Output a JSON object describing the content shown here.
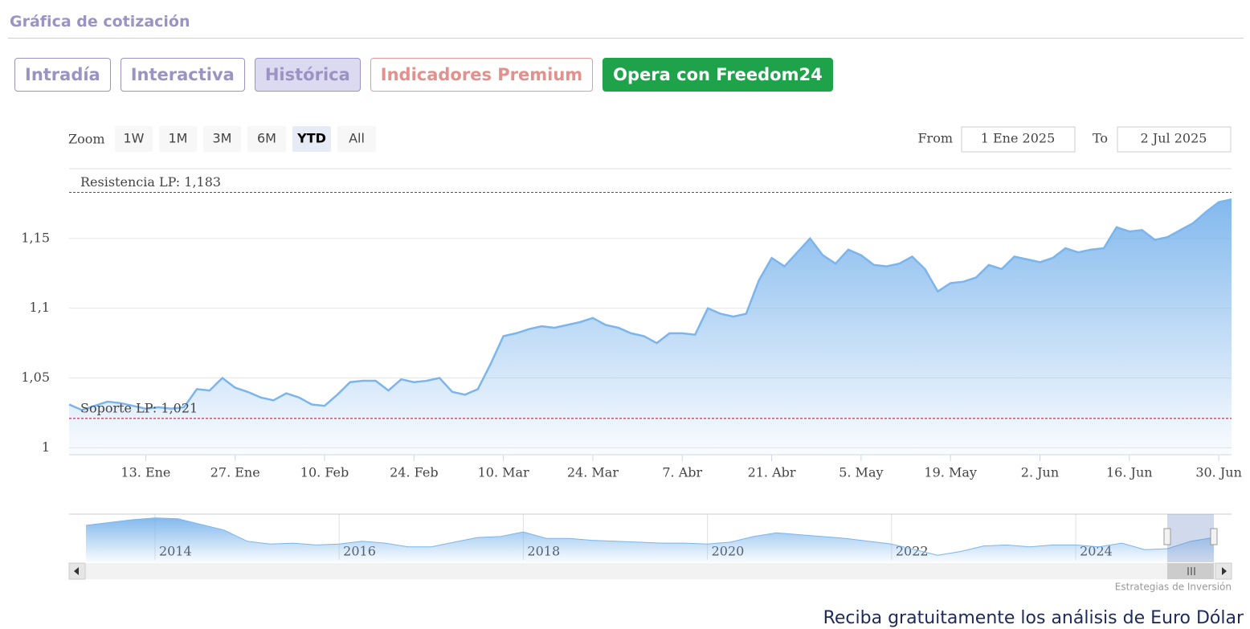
{
  "header": {
    "title": "Gráfica de cotización"
  },
  "tabs": [
    "Intradía",
    "Interactiva",
    "Histórica",
    "Indicadores Premium",
    "Opera con Freedom24"
  ],
  "zoom": {
    "label": "Zoom",
    "buttons": [
      "1W",
      "1M",
      "3M",
      "6M",
      "YTD",
      "All"
    ],
    "active": "YTD"
  },
  "range": {
    "from_label": "From",
    "from": "1 Ene 2025",
    "to_label": "To",
    "to": "2 Jul 2025"
  },
  "credits": "Estrategias de Inversión",
  "footer": "Reciba gratuitamente los análisis de Euro Dólar",
  "chart_data": [
    {
      "type": "area",
      "color": "#7cb5ec",
      "grid": true,
      "categories": [
        null,
        null,
        null,
        null,
        null,
        null,
        "13. Ene",
        null,
        null,
        null,
        null,
        null,
        null,
        "27. Ene",
        null,
        null,
        null,
        null,
        null,
        null,
        "10. Feb",
        null,
        null,
        null,
        null,
        null,
        null,
        "24. Feb",
        null,
        null,
        null,
        null,
        null,
        null,
        "10. Mar",
        null,
        null,
        null,
        null,
        null,
        null,
        "24. Mar",
        null,
        null,
        null,
        null,
        null,
        null,
        "7. Abr",
        null,
        null,
        null,
        null,
        null,
        null,
        "21. Abr",
        null,
        null,
        null,
        null,
        null,
        null,
        "5. May",
        null,
        null,
        null,
        null,
        null,
        null,
        "19. May",
        null,
        null,
        null,
        null,
        null,
        null,
        "2. Jun",
        null,
        null,
        null,
        null,
        null,
        null,
        "16. Jun",
        null,
        null,
        null,
        null,
        null,
        null,
        "30. Jun",
        null
      ],
      "values": [
        1.031,
        1.027,
        1.03,
        1.033,
        1.032,
        1.03,
        1.028,
        1.029,
        1.028,
        1.029,
        1.042,
        1.041,
        1.05,
        1.043,
        1.04,
        1.036,
        1.034,
        1.039,
        1.036,
        1.031,
        1.03,
        1.038,
        1.047,
        1.048,
        1.048,
        1.041,
        1.049,
        1.047,
        1.048,
        1.05,
        1.04,
        1.038,
        1.042,
        1.06,
        1.08,
        1.082,
        1.085,
        1.087,
        1.086,
        1.088,
        1.09,
        1.093,
        1.088,
        1.086,
        1.082,
        1.08,
        1.075,
        1.082,
        1.082,
        1.081,
        1.1,
        1.096,
        1.094,
        1.096,
        1.12,
        1.136,
        1.13,
        1.14,
        1.15,
        1.138,
        1.132,
        1.142,
        1.138,
        1.131,
        1.13,
        1.132,
        1.137,
        1.128,
        1.112,
        1.118,
        1.119,
        1.122,
        1.131,
        1.128,
        1.137,
        1.135,
        1.133,
        1.136,
        1.143,
        1.14,
        1.142,
        1.143,
        1.158,
        1.155,
        1.156,
        1.149,
        1.151,
        1.156,
        1.161,
        1.169,
        1.176,
        1.178
      ],
      "ylim": [
        0.995,
        1.2
      ],
      "yticks": [
        1,
        {
          "value": 1.05,
          "label": "1,05"
        },
        {
          "value": 1.1,
          "label": "1,1"
        },
        {
          "value": 1.15,
          "label": "1,15"
        }
      ],
      "plot_lines": [
        {
          "value": 1.183,
          "label": "Resistencia LP: 1,183",
          "color": "#1f7a1f"
        },
        {
          "value": 1.021,
          "label": "Soporte LP: 1,021",
          "color": "#a0142a"
        }
      ]
    },
    {
      "type": "area",
      "color": "#7cb5ec",
      "grid": true,
      "categories": [
        null,
        null,
        null,
        "2014",
        null,
        null,
        null,
        null,
        null,
        null,
        null,
        "2016",
        null,
        null,
        null,
        null,
        null,
        null,
        null,
        "2018",
        null,
        null,
        null,
        null,
        null,
        null,
        null,
        "2020",
        null,
        null,
        null,
        null,
        null,
        null,
        null,
        "2022",
        null,
        null,
        null,
        null,
        null,
        null,
        null,
        "2024",
        null,
        null,
        null,
        null,
        null,
        null
      ],
      "values": [
        1.3,
        1.33,
        1.36,
        1.38,
        1.37,
        1.31,
        1.25,
        1.13,
        1.1,
        1.11,
        1.09,
        1.1,
        1.13,
        1.11,
        1.07,
        1.07,
        1.12,
        1.17,
        1.18,
        1.23,
        1.16,
        1.16,
        1.14,
        1.13,
        1.12,
        1.11,
        1.11,
        1.1,
        1.12,
        1.18,
        1.22,
        1.2,
        1.18,
        1.16,
        1.13,
        1.1,
        1.04,
        0.98,
        1.02,
        1.08,
        1.09,
        1.07,
        1.09,
        1.09,
        1.07,
        1.11,
        1.04,
        1.05,
        1.13,
        1.17
      ],
      "ylim": [
        0.93,
        1.42
      ]
    }
  ]
}
